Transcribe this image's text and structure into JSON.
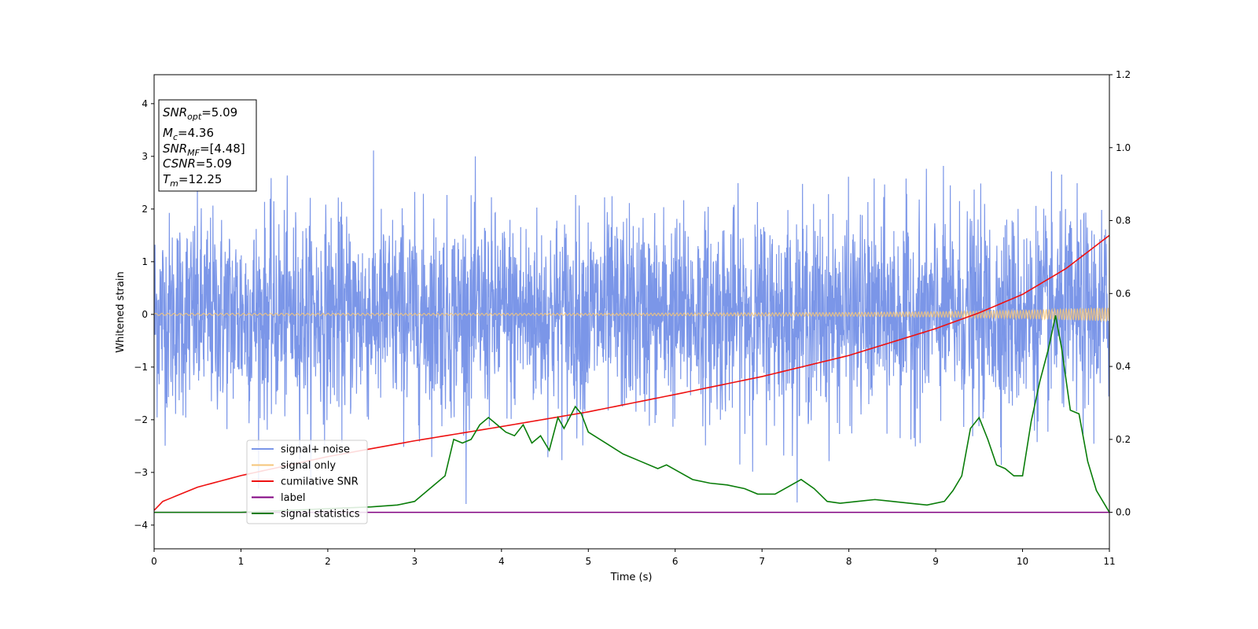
{
  "chart_data": {
    "type": "line",
    "xlabel": "Time (s)",
    "ylabel": "Whitened strain",
    "xlim": [
      0,
      11
    ],
    "ylim": [
      -4.45,
      4.55
    ],
    "y2lim": [
      -0.1,
      1.2
    ],
    "x_ticks": [
      "0",
      "1",
      "2",
      "3",
      "4",
      "5",
      "6",
      "7",
      "8",
      "9",
      "10",
      "11"
    ],
    "y_ticks": [
      "−4",
      "−3",
      "−2",
      "−1",
      "0",
      "1",
      "2",
      "3",
      "4"
    ],
    "y2_ticks": [
      "0.0",
      "0.2",
      "0.4",
      "0.6",
      "0.8",
      "1.0",
      "1.2"
    ],
    "grid": false,
    "legend_position": "lower-left",
    "stats_box": [
      {
        "base": "SNR",
        "sub": "opt",
        "value": "=5.09"
      },
      {
        "base": "M",
        "sub": "c",
        "value": "=4.36"
      },
      {
        "base": "SNR",
        "sub": "MF",
        "value": "=[4.48]"
      },
      {
        "base": "CSNR",
        "sub": "",
        "value": "=5.09"
      },
      {
        "base": "T",
        "sub": "m",
        "value": "=12.25"
      }
    ],
    "series": [
      {
        "name": "signal+ noise",
        "axis": "left",
        "color": "#7b96e8",
        "description_kind": "noise",
        "noise_std": 0.95,
        "x_range": [
          0,
          11
        ]
      },
      {
        "name": "signal only",
        "axis": "left",
        "color": "#f5c67a",
        "envelope_x": [
          0,
          5,
          8,
          9,
          10,
          11
        ],
        "envelope_amp": [
          0.02,
          0.02,
          0.035,
          0.05,
          0.08,
          0.13
        ]
      },
      {
        "name": "cumilative SNR",
        "axis": "left",
        "color": "#ee1111",
        "x": [
          0,
          0.1,
          0.5,
          1,
          2,
          3,
          4,
          5,
          6,
          7,
          8,
          9,
          9.5,
          10,
          10.5,
          11
        ],
        "y": [
          -3.72,
          -3.55,
          -3.28,
          -3.06,
          -2.7,
          -2.4,
          -2.13,
          -1.85,
          -1.52,
          -1.18,
          -0.78,
          -0.27,
          0.03,
          0.38,
          0.87,
          1.5
        ]
      },
      {
        "name": "label",
        "axis": "right",
        "color": "#800080",
        "x": [
          0,
          11
        ],
        "y": [
          0,
          0
        ]
      },
      {
        "name": "signal statistics",
        "axis": "right",
        "color": "#0a7d0a",
        "x": [
          0,
          0.5,
          1,
          1.5,
          2,
          2.5,
          2.8,
          3.0,
          3.2,
          3.35,
          3.45,
          3.55,
          3.65,
          3.75,
          3.85,
          3.95,
          4.05,
          4.15,
          4.25,
          4.35,
          4.45,
          4.55,
          4.65,
          4.72,
          4.85,
          4.92,
          5.0,
          5.2,
          5.4,
          5.6,
          5.8,
          5.9,
          6.05,
          6.2,
          6.4,
          6.6,
          6.8,
          6.95,
          7.15,
          7.3,
          7.45,
          7.6,
          7.75,
          7.9,
          8.1,
          8.3,
          8.5,
          8.7,
          8.9,
          9.1,
          9.2,
          9.3,
          9.4,
          9.5,
          9.6,
          9.7,
          9.8,
          9.9,
          10.0,
          10.1,
          10.2,
          10.3,
          10.38,
          10.45,
          10.55,
          10.65,
          10.75,
          10.85,
          10.95,
          11
        ],
        "y": [
          0.0,
          0.0,
          0.0,
          0.005,
          0.01,
          0.015,
          0.02,
          0.03,
          0.07,
          0.1,
          0.2,
          0.19,
          0.2,
          0.24,
          0.26,
          0.24,
          0.22,
          0.21,
          0.24,
          0.19,
          0.21,
          0.17,
          0.26,
          0.23,
          0.29,
          0.27,
          0.22,
          0.19,
          0.16,
          0.14,
          0.12,
          0.13,
          0.11,
          0.09,
          0.08,
          0.075,
          0.065,
          0.05,
          0.05,
          0.07,
          0.09,
          0.065,
          0.03,
          0.025,
          0.03,
          0.035,
          0.03,
          0.025,
          0.02,
          0.03,
          0.06,
          0.1,
          0.23,
          0.26,
          0.2,
          0.13,
          0.12,
          0.1,
          0.1,
          0.25,
          0.36,
          0.45,
          0.54,
          0.45,
          0.28,
          0.27,
          0.14,
          0.06,
          0.02,
          0.0
        ]
      }
    ]
  }
}
